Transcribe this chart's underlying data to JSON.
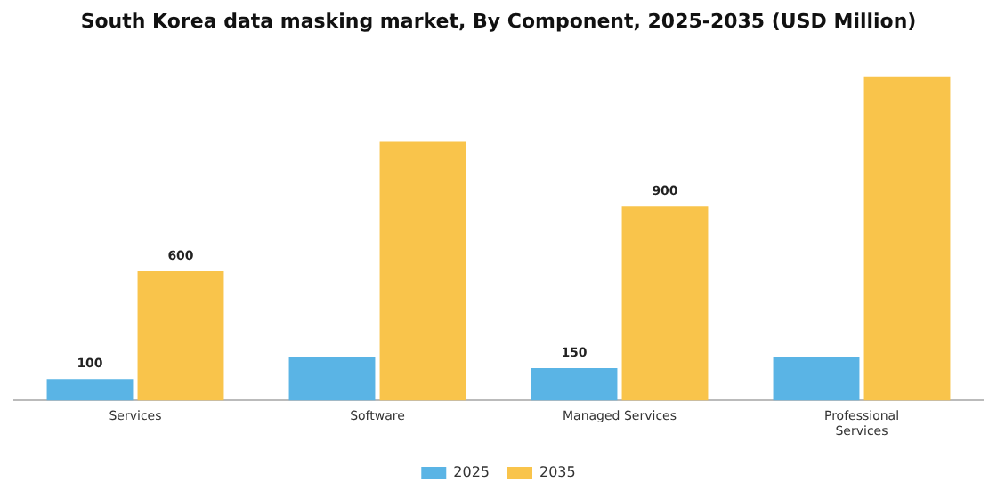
{
  "chart_data": {
    "type": "bar",
    "title": "South Korea data masking market, By Component, 2025-2035 (USD Million)",
    "categories": [
      "Services",
      "Software",
      "Managed Services",
      "Professional Services"
    ],
    "series": [
      {
        "name": "2025",
        "color": "#5ab4e5",
        "values": [
          100,
          200,
          150,
          200
        ],
        "value_labels": [
          "100",
          null,
          "150",
          null
        ]
      },
      {
        "name": "2035",
        "color": "#f9c44b",
        "values": [
          600,
          1200,
          900,
          1500
        ],
        "value_labels": [
          "600",
          null,
          "900",
          null
        ]
      }
    ],
    "legend": "bottom",
    "grid": false
  }
}
